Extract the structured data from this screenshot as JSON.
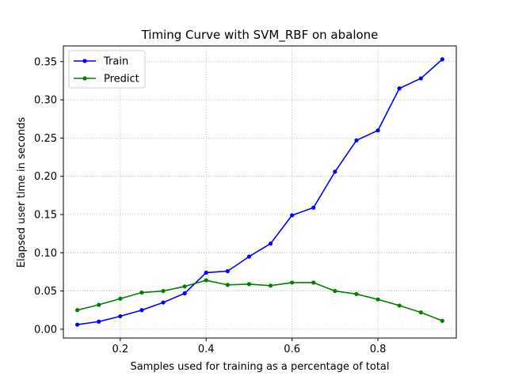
{
  "chart_data": {
    "type": "line",
    "title": "Timing Curve with SVM_RBF on abalone",
    "xlabel": "Samples used for training as a percentage of total",
    "ylabel": "Elapsed user time in seconds",
    "xlim": [
      0.0675,
      0.9825
    ],
    "ylim": [
      -0.0115,
      0.3705
    ],
    "xticks": [
      0.2,
      0.4,
      0.6,
      0.8
    ],
    "xtick_labels": [
      "0.2",
      "0.4",
      "0.6",
      "0.8"
    ],
    "yticks": [
      0.0,
      0.05,
      0.1,
      0.15,
      0.2,
      0.25,
      0.3,
      0.35
    ],
    "ytick_labels": [
      "0.00",
      "0.05",
      "0.10",
      "0.15",
      "0.20",
      "0.25",
      "0.30",
      "0.35"
    ],
    "grid": true,
    "legend_position": "top-left",
    "x": [
      0.1,
      0.15,
      0.2,
      0.25,
      0.3,
      0.35,
      0.4,
      0.45,
      0.5,
      0.55,
      0.6,
      0.65,
      0.7,
      0.75,
      0.8,
      0.85,
      0.9,
      0.95
    ],
    "series": [
      {
        "name": "Train",
        "color": "#0000ff",
        "values": [
          0.006,
          0.01,
          0.017,
          0.025,
          0.035,
          0.047,
          0.074,
          0.076,
          0.095,
          0.112,
          0.149,
          0.159,
          0.206,
          0.247,
          0.26,
          0.315,
          0.328,
          0.353
        ]
      },
      {
        "name": "Predict",
        "color": "#008000",
        "values": [
          0.025,
          0.032,
          0.04,
          0.048,
          0.05,
          0.056,
          0.064,
          0.058,
          0.059,
          0.057,
          0.061,
          0.061,
          0.05,
          0.046,
          0.039,
          0.031,
          0.022,
          0.011
        ]
      }
    ]
  }
}
